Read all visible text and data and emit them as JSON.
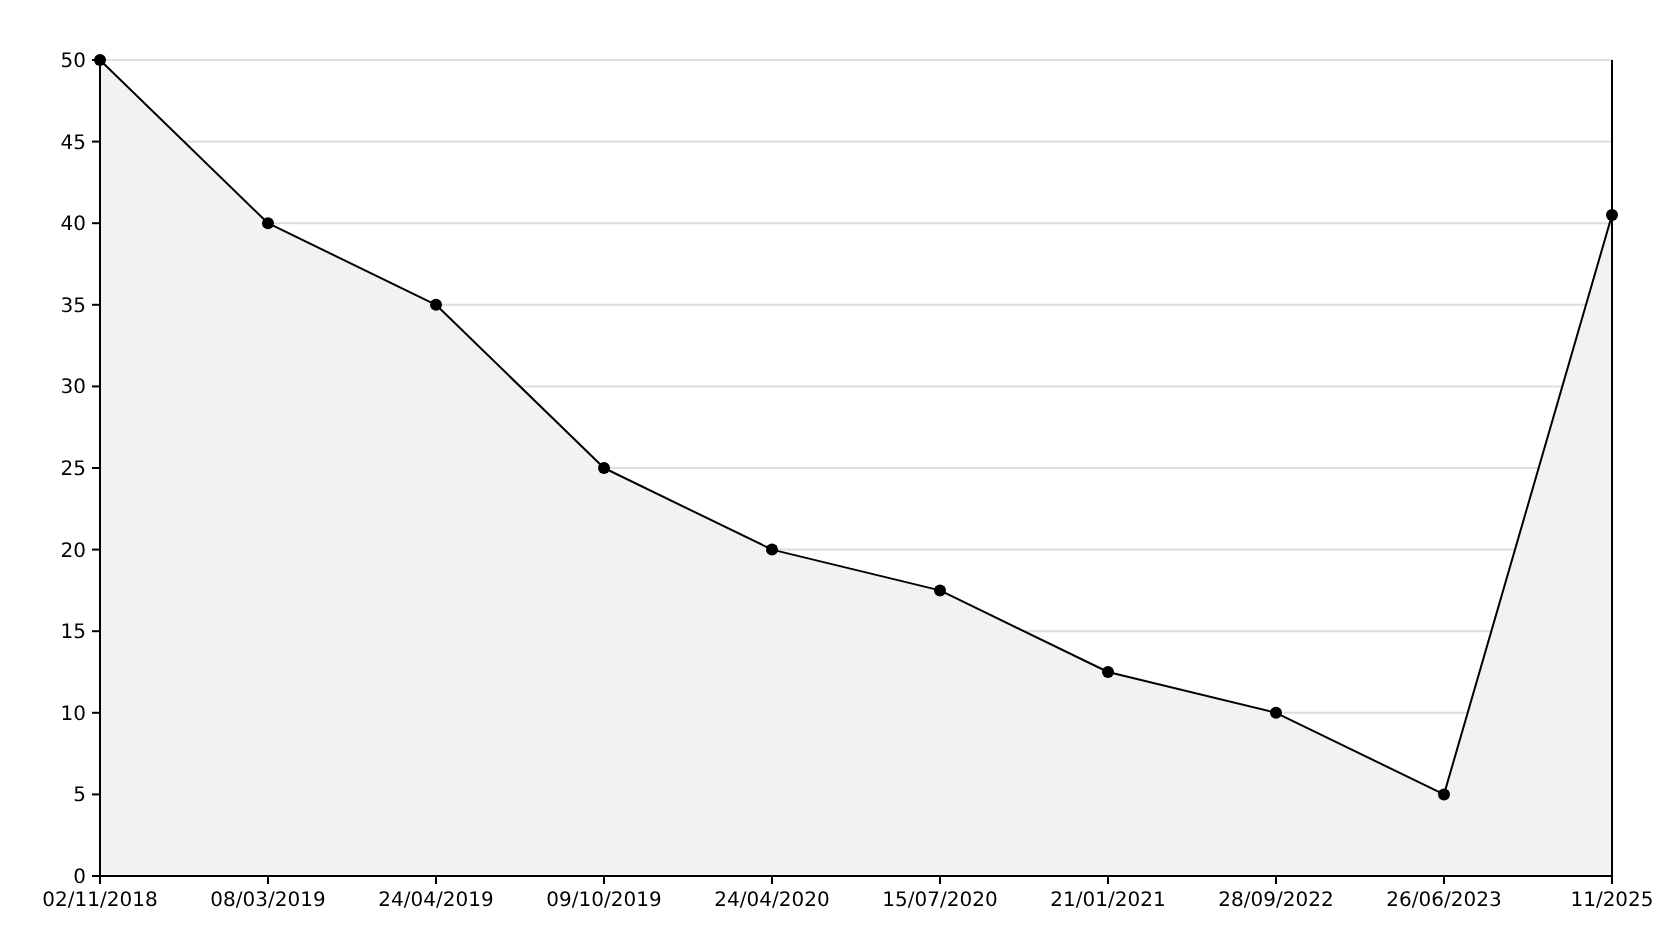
{
  "chart_data": {
    "type": "area",
    "categories": [
      "02/11/2018",
      "08/03/2019",
      "24/04/2019",
      "09/10/2019",
      "24/04/2020",
      "15/07/2020",
      "21/01/2021",
      "28/09/2022",
      "26/06/2023",
      "11/2025"
    ],
    "series": [
      {
        "color": "#000000",
        "values": [
          50,
          40,
          35,
          25,
          20,
          17.5,
          12.5,
          10,
          5,
          40.5
        ]
      }
    ],
    "ylim": [
      0,
      50
    ],
    "yticks": [
      0,
      5,
      10,
      15,
      20,
      25,
      30,
      35,
      40,
      45,
      50
    ],
    "grid": "y",
    "marker": "circle"
  }
}
